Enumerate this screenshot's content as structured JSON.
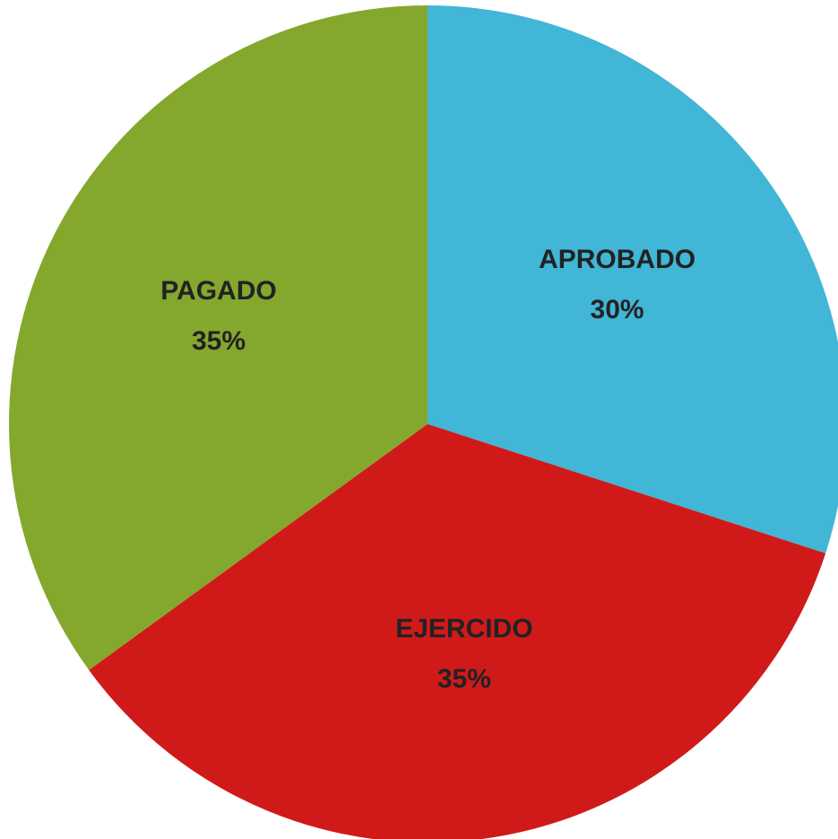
{
  "chart_data": {
    "type": "pie",
    "categories": [
      "APROBADO",
      "EJERCIDO",
      "PAGADO"
    ],
    "values": [
      30,
      35,
      35
    ],
    "value_labels": [
      "30%",
      "35%",
      "35%"
    ],
    "colors": [
      "#41b6d6",
      "#d01a1a",
      "#84a82e"
    ]
  }
}
